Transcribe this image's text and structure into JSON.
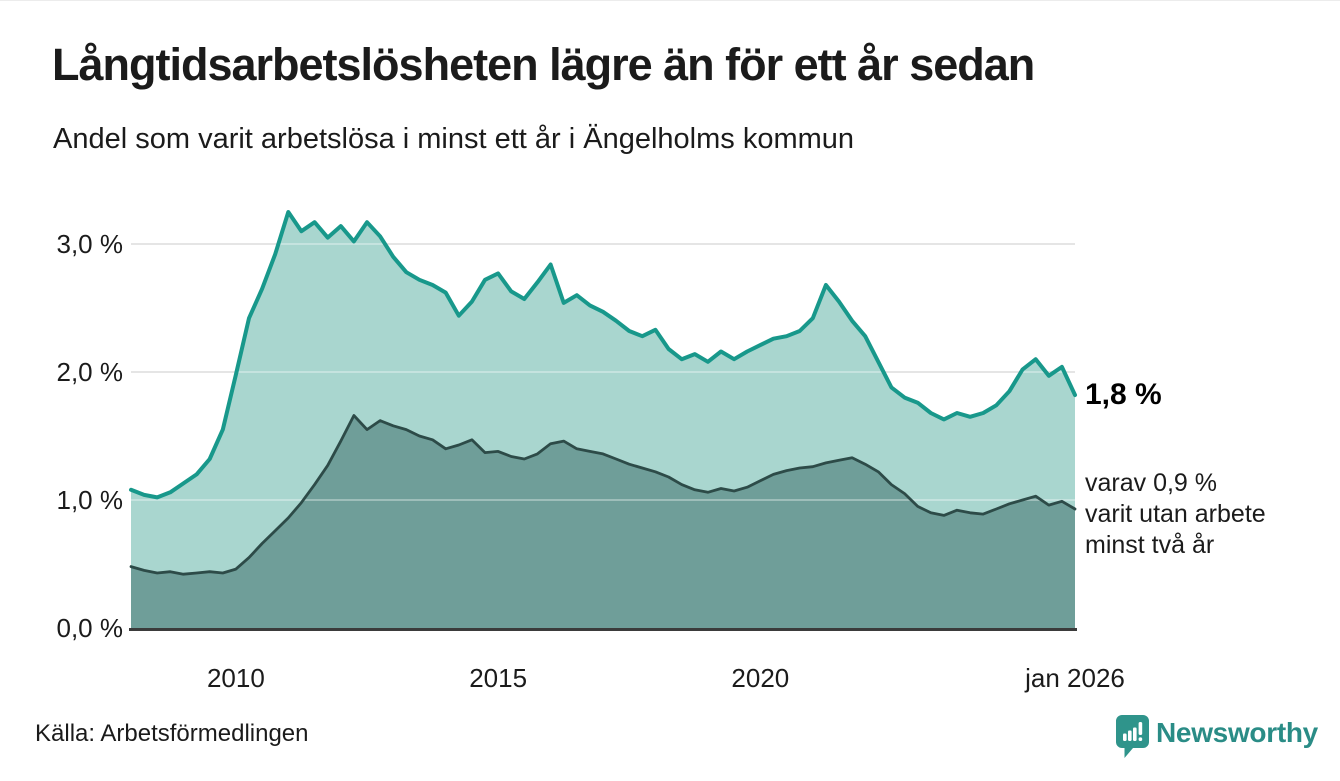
{
  "header": {
    "title": "Långtidsarbetslösheten lägre än för ett år sedan",
    "subtitle": "Andel som varit arbetslösa i minst ett år i Ängelholms kommun"
  },
  "annotations": {
    "latest_total": "1,8 %",
    "two_year_note": "varav 0,9 %\nvarit utan arbete\nminst två år"
  },
  "footer": {
    "source": "Källa: Arbetsförmedlingen",
    "logo_text": "Newsworthy"
  },
  "colors": {
    "total_line": "#18988b",
    "total_fill": "#a9d6cf",
    "two_year_line": "#2d4b48",
    "two_year_fill": "#6f9e99",
    "grid_under": "#d9d9d9",
    "axis_line": "#3b3b3b",
    "logo_teal": "#2f948b",
    "logo_text_teal": "#2a8c86"
  },
  "chart_data": {
    "type": "area",
    "title": "Långtidsarbetslösheten lägre än för ett år sedan",
    "subtitle": "Andel som varit arbetslösa i minst ett år i Ängelholms kommun",
    "x_unit": "decimal_year (quarterly samples, jan 2008 – jan 2026)",
    "ylabel": "",
    "xlabel": "",
    "ylim": [
      0,
      3.4
    ],
    "grid": true,
    "legend": "none",
    "x": [
      2008.0,
      2008.25,
      2008.5,
      2008.75,
      2009.0,
      2009.25,
      2009.5,
      2009.75,
      2010.0,
      2010.25,
      2010.5,
      2010.75,
      2011.0,
      2011.25,
      2011.5,
      2011.75,
      2012.0,
      2012.25,
      2012.5,
      2012.75,
      2013.0,
      2013.25,
      2013.5,
      2013.75,
      2014.0,
      2014.25,
      2014.5,
      2014.75,
      2015.0,
      2015.25,
      2015.5,
      2015.75,
      2016.0,
      2016.25,
      2016.5,
      2016.75,
      2017.0,
      2017.25,
      2017.5,
      2017.75,
      2018.0,
      2018.25,
      2018.5,
      2018.75,
      2019.0,
      2019.25,
      2019.5,
      2019.75,
      2020.0,
      2020.25,
      2020.5,
      2020.75,
      2021.0,
      2021.25,
      2021.5,
      2021.75,
      2022.0,
      2022.25,
      2022.5,
      2022.75,
      2023.0,
      2023.25,
      2023.5,
      2023.75,
      2024.0,
      2024.25,
      2024.5,
      2024.75,
      2025.0,
      2025.25,
      2025.5,
      2025.75,
      2026.0
    ],
    "series": [
      {
        "name": "Arbetslösa minst ett år",
        "values": [
          1.08,
          1.04,
          1.02,
          1.06,
          1.13,
          1.2,
          1.32,
          1.55,
          1.98,
          2.42,
          2.65,
          2.92,
          3.25,
          3.1,
          3.17,
          3.05,
          3.14,
          3.02,
          3.17,
          3.06,
          2.9,
          2.78,
          2.72,
          2.68,
          2.62,
          2.44,
          2.55,
          2.72,
          2.77,
          2.63,
          2.57,
          2.7,
          2.84,
          2.54,
          2.6,
          2.52,
          2.47,
          2.4,
          2.32,
          2.28,
          2.33,
          2.18,
          2.1,
          2.14,
          2.08,
          2.16,
          2.1,
          2.16,
          2.21,
          2.26,
          2.28,
          2.32,
          2.42,
          2.68,
          2.55,
          2.4,
          2.28,
          2.08,
          1.88,
          1.8,
          1.76,
          1.68,
          1.63,
          1.68,
          1.65,
          1.68,
          1.74,
          1.85,
          2.02,
          2.1,
          1.97,
          2.04,
          1.82
        ],
        "last_value_label": "1,8 %"
      },
      {
        "name": "Varav utan arbete minst två år",
        "values": [
          0.48,
          0.45,
          0.43,
          0.44,
          0.42,
          0.43,
          0.44,
          0.43,
          0.46,
          0.55,
          0.66,
          0.76,
          0.86,
          0.98,
          1.12,
          1.27,
          1.46,
          1.66,
          1.55,
          1.62,
          1.58,
          1.55,
          1.5,
          1.47,
          1.4,
          1.43,
          1.47,
          1.37,
          1.38,
          1.34,
          1.32,
          1.36,
          1.44,
          1.46,
          1.4,
          1.38,
          1.36,
          1.32,
          1.28,
          1.25,
          1.22,
          1.18,
          1.12,
          1.08,
          1.06,
          1.09,
          1.07,
          1.1,
          1.15,
          1.2,
          1.23,
          1.25,
          1.26,
          1.29,
          1.31,
          1.33,
          1.28,
          1.22,
          1.12,
          1.05,
          0.95,
          0.9,
          0.88,
          0.92,
          0.9,
          0.89,
          0.93,
          0.97,
          1.0,
          1.03,
          0.96,
          0.99,
          0.93
        ],
        "last_value_label": "0,9 %"
      }
    ],
    "yticks": [
      {
        "label": "0,0 %",
        "value": 0
      },
      {
        "label": "1,0 %",
        "value": 1
      },
      {
        "label": "2,0 %",
        "value": 2
      },
      {
        "label": "3,0 %",
        "value": 3
      }
    ],
    "xticks": [
      {
        "label": "2010",
        "t": 2010
      },
      {
        "label": "2015",
        "t": 2015
      },
      {
        "label": "2020",
        "t": 2020
      },
      {
        "label": "jan 2026",
        "t": 2026
      }
    ]
  }
}
